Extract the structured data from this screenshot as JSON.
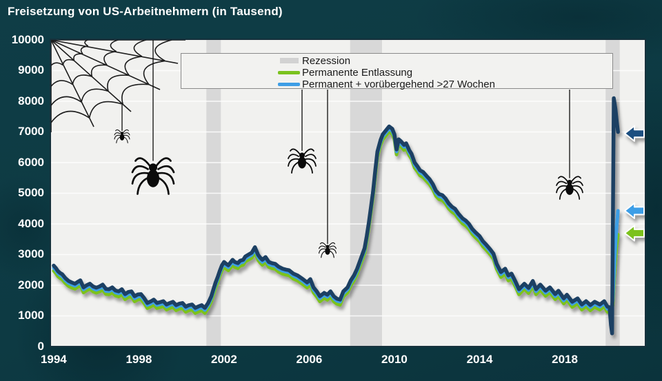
{
  "title": "Freisetzung von US-Arbeitnehmern (in Tausend)",
  "colors": {
    "background": "#0D3A43",
    "background_dark": "#042028",
    "plot_bg": "#F1F1EF",
    "plot_border": "#16313C",
    "grid": "#FFFFFF",
    "recession": "#D8D8D8",
    "navy": "#1C4063",
    "blue": "#3E9EE6",
    "green": "#7BC21E",
    "arrow_navy": "#1F5080",
    "legend_bg": "#F2F2F0",
    "legend_border": "#8A8A8A",
    "text_light": "#FFFFFF",
    "text_dark": "#1A1A1A",
    "spider": "#0B0B0B"
  },
  "chart_data": {
    "type": "line",
    "title": "Freisetzung von US-Arbeitnehmern (in Tausend)",
    "x_domain": [
      1993.81,
      2021.82
    ],
    "y_domain": [
      0,
      10000
    ],
    "x_ticks": [
      1994,
      1998,
      2002,
      2006,
      2010,
      2014,
      2018
    ],
    "y_ticks": [
      0,
      1000,
      2000,
      3000,
      4000,
      5000,
      6000,
      7000,
      8000,
      9000,
      10000
    ],
    "grid": "horizontal-white",
    "legend_position": "top-center",
    "legend": [
      {
        "swatch": "patch",
        "color": "#D2D2D2",
        "label": "Rezession"
      },
      {
        "swatch": "line",
        "color": "#7BC21E",
        "label": "Permanente Entlassung"
      },
      {
        "swatch": "line",
        "color": "#3E9EE6",
        "label": "Permanent + vorübergehend >27 Wochen"
      }
    ],
    "recessions": [
      [
        2001.17,
        2001.85
      ],
      [
        2007.92,
        2009.42
      ],
      [
        2019.92,
        2020.58
      ]
    ],
    "series": [
      {
        "name": "navy-line",
        "color": "#1C4063",
        "width": 5.5,
        "points": [
          [
            1994.0,
            2640
          ],
          [
            1994.1,
            2560
          ],
          [
            1994.2,
            2460
          ],
          [
            1994.3,
            2400
          ],
          [
            1994.4,
            2360
          ],
          [
            1994.55,
            2230
          ],
          [
            1994.7,
            2140
          ],
          [
            1994.85,
            2090
          ],
          [
            1995.0,
            2050
          ],
          [
            1995.15,
            2120
          ],
          [
            1995.25,
            2160
          ],
          [
            1995.4,
            1930
          ],
          [
            1995.55,
            2000
          ],
          [
            1995.7,
            2050
          ],
          [
            1995.85,
            1960
          ],
          [
            1996.0,
            1920
          ],
          [
            1996.15,
            1960
          ],
          [
            1996.3,
            2020
          ],
          [
            1996.45,
            1880
          ],
          [
            1996.6,
            1870
          ],
          [
            1996.75,
            1930
          ],
          [
            1996.9,
            1830
          ],
          [
            1997.05,
            1800
          ],
          [
            1997.2,
            1870
          ],
          [
            1997.35,
            1710
          ],
          [
            1997.5,
            1780
          ],
          [
            1997.65,
            1800
          ],
          [
            1997.8,
            1640
          ],
          [
            1997.95,
            1700
          ],
          [
            1998.1,
            1710
          ],
          [
            1998.25,
            1580
          ],
          [
            1998.4,
            1420
          ],
          [
            1998.55,
            1470
          ],
          [
            1998.7,
            1530
          ],
          [
            1998.85,
            1420
          ],
          [
            1999.0,
            1450
          ],
          [
            1999.15,
            1480
          ],
          [
            1999.3,
            1370
          ],
          [
            1999.45,
            1420
          ],
          [
            1999.6,
            1460
          ],
          [
            1999.75,
            1350
          ],
          [
            1999.9,
            1400
          ],
          [
            2000.05,
            1420
          ],
          [
            2000.2,
            1300
          ],
          [
            2000.35,
            1350
          ],
          [
            2000.5,
            1370
          ],
          [
            2000.65,
            1260
          ],
          [
            2000.8,
            1310
          ],
          [
            2000.95,
            1350
          ],
          [
            2001.1,
            1260
          ],
          [
            2001.25,
            1420
          ],
          [
            2001.4,
            1640
          ],
          [
            2001.5,
            1870
          ],
          [
            2001.6,
            2090
          ],
          [
            2001.7,
            2270
          ],
          [
            2001.8,
            2470
          ],
          [
            2001.9,
            2650
          ],
          [
            2002.0,
            2760
          ],
          [
            2002.1,
            2700
          ],
          [
            2002.2,
            2650
          ],
          [
            2002.3,
            2740
          ],
          [
            2002.4,
            2830
          ],
          [
            2002.5,
            2760
          ],
          [
            2002.65,
            2720
          ],
          [
            2002.75,
            2800
          ],
          [
            2002.9,
            2830
          ],
          [
            2003.0,
            2940
          ],
          [
            2003.15,
            3000
          ],
          [
            2003.3,
            3060
          ],
          [
            2003.45,
            3240
          ],
          [
            2003.6,
            2990
          ],
          [
            2003.7,
            2900
          ],
          [
            2003.8,
            2830
          ],
          [
            2003.95,
            2920
          ],
          [
            2004.1,
            2760
          ],
          [
            2004.25,
            2720
          ],
          [
            2004.4,
            2700
          ],
          [
            2004.55,
            2610
          ],
          [
            2004.75,
            2540
          ],
          [
            2004.9,
            2510
          ],
          [
            2005.05,
            2490
          ],
          [
            2005.25,
            2380
          ],
          [
            2005.45,
            2320
          ],
          [
            2005.7,
            2200
          ],
          [
            2005.9,
            2090
          ],
          [
            2006.05,
            2200
          ],
          [
            2006.2,
            1930
          ],
          [
            2006.35,
            1800
          ],
          [
            2006.5,
            1640
          ],
          [
            2006.7,
            1750
          ],
          [
            2006.85,
            1690
          ],
          [
            2007.0,
            1800
          ],
          [
            2007.15,
            1640
          ],
          [
            2007.3,
            1560
          ],
          [
            2007.45,
            1530
          ],
          [
            2007.6,
            1800
          ],
          [
            2007.8,
            1930
          ],
          [
            2007.95,
            2160
          ],
          [
            2008.1,
            2320
          ],
          [
            2008.25,
            2540
          ],
          [
            2008.4,
            2830
          ],
          [
            2008.6,
            3210
          ],
          [
            2008.7,
            3600
          ],
          [
            2008.8,
            4050
          ],
          [
            2008.9,
            4560
          ],
          [
            2009.0,
            5080
          ],
          [
            2009.1,
            5750
          ],
          [
            2009.2,
            6360
          ],
          [
            2009.35,
            6740
          ],
          [
            2009.45,
            6920
          ],
          [
            2009.6,
            7050
          ],
          [
            2009.75,
            7180
          ],
          [
            2009.9,
            7100
          ],
          [
            2010.0,
            6920
          ],
          [
            2010.1,
            6430
          ],
          [
            2010.2,
            6760
          ],
          [
            2010.3,
            6700
          ],
          [
            2010.45,
            6580
          ],
          [
            2010.55,
            6630
          ],
          [
            2010.7,
            6400
          ],
          [
            2010.8,
            6290
          ],
          [
            2010.95,
            6000
          ],
          [
            2011.1,
            5860
          ],
          [
            2011.2,
            5750
          ],
          [
            2011.35,
            5690
          ],
          [
            2011.5,
            5570
          ],
          [
            2011.65,
            5460
          ],
          [
            2011.8,
            5300
          ],
          [
            2011.95,
            5080
          ],
          [
            2012.1,
            4970
          ],
          [
            2012.25,
            4940
          ],
          [
            2012.4,
            4830
          ],
          [
            2012.55,
            4670
          ],
          [
            2012.7,
            4560
          ],
          [
            2012.85,
            4490
          ],
          [
            2013.0,
            4340
          ],
          [
            2013.2,
            4180
          ],
          [
            2013.35,
            4110
          ],
          [
            2013.5,
            4000
          ],
          [
            2013.65,
            3840
          ],
          [
            2013.8,
            3730
          ],
          [
            2014.0,
            3600
          ],
          [
            2014.15,
            3440
          ],
          [
            2014.3,
            3330
          ],
          [
            2014.5,
            3170
          ],
          [
            2014.65,
            3030
          ],
          [
            2014.8,
            2700
          ],
          [
            2015.0,
            2430
          ],
          [
            2015.2,
            2540
          ],
          [
            2015.35,
            2320
          ],
          [
            2015.5,
            2380
          ],
          [
            2015.7,
            2100
          ],
          [
            2015.85,
            1870
          ],
          [
            2016.1,
            2050
          ],
          [
            2016.3,
            1910
          ],
          [
            2016.5,
            2140
          ],
          [
            2016.65,
            1870
          ],
          [
            2016.85,
            2020
          ],
          [
            2017.1,
            1820
          ],
          [
            2017.3,
            1930
          ],
          [
            2017.55,
            1710
          ],
          [
            2017.7,
            1820
          ],
          [
            2017.95,
            1570
          ],
          [
            2018.1,
            1690
          ],
          [
            2018.35,
            1460
          ],
          [
            2018.6,
            1570
          ],
          [
            2018.8,
            1370
          ],
          [
            2019.0,
            1480
          ],
          [
            2019.2,
            1350
          ],
          [
            2019.4,
            1460
          ],
          [
            2019.65,
            1370
          ],
          [
            2019.85,
            1480
          ],
          [
            2020.0,
            1300
          ],
          [
            2020.1,
            1280
          ],
          [
            2020.17,
            700
          ],
          [
            2020.22,
            430
          ],
          [
            2020.3,
            8100
          ],
          [
            2020.38,
            7750
          ],
          [
            2020.45,
            7280
          ],
          [
            2020.5,
            7000
          ]
        ]
      },
      {
        "name": "blue-line",
        "label": "Permanent + vorübergehend >27 Wochen",
        "color": "#3E9EE6",
        "width": 5,
        "offset": -70,
        "until": 2020.1,
        "tail": [
          [
            2020.15,
            1050
          ],
          [
            2020.25,
            1500
          ],
          [
            2020.33,
            2700
          ],
          [
            2020.42,
            3800
          ],
          [
            2020.5,
            4430
          ]
        ]
      },
      {
        "name": "green-line",
        "label": "Permanente Entlassung",
        "color": "#7BC21E",
        "width": 5,
        "offset": -170,
        "until": 2020.1,
        "tail": [
          [
            2020.15,
            950
          ],
          [
            2020.25,
            1350
          ],
          [
            2020.33,
            2350
          ],
          [
            2020.42,
            3250
          ],
          [
            2020.5,
            3650
          ]
        ]
      }
    ],
    "arrows": [
      {
        "name": "navy-arrow",
        "color": "#1F5080",
        "value": 6950
      },
      {
        "name": "blue-arrow",
        "color": "#3E9EE6",
        "value": 4430
      },
      {
        "name": "green-arrow",
        "color": "#7BC21E",
        "value": 3700
      }
    ]
  }
}
